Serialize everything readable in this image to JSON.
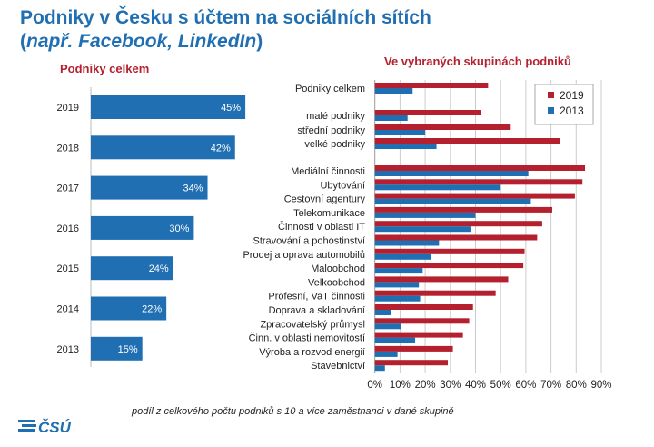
{
  "header": {
    "title_line1": "Podniky v Česku s účtem na sociálních sítích",
    "title_line2_prefix": "(",
    "title_line2_italic": "např. Facebook, LinkedIn",
    "title_line2_suffix": ")"
  },
  "footnote": "podíl z celkového počtu podniků s 10 a více zaměstnanci v dané skupině",
  "logo": "ČSÚ",
  "chart_data": [
    {
      "type": "bar",
      "orientation": "horizontal",
      "title": "Podniky celkem",
      "categories": [
        "2019",
        "2018",
        "2017",
        "2016",
        "2015",
        "2014",
        "2013"
      ],
      "values": [
        45,
        42,
        34,
        30,
        24,
        22,
        15
      ],
      "data_labels": [
        "45%",
        "42%",
        "34%",
        "30%",
        "24%",
        "22%",
        "15%"
      ],
      "color": "#1f6fb2"
    },
    {
      "type": "bar",
      "orientation": "horizontal",
      "title": "Ve vybraných skupinách podniků",
      "categories": [
        "Podniky celkem",
        "malé podniky",
        "střední podniky",
        "velké podniky",
        "Mediální činnosti",
        "Ubytování",
        "Cestovní agentury",
        "Telekomunikace",
        "Činnosti v oblasti IT",
        "Stravování a pohostinství",
        "Prodej a oprava automobilů",
        "Maloobchod",
        "Velkoobchod",
        "Profesní, VaT činnosti",
        "Doprava a skladování",
        "Zpracovatelský průmysl",
        "Činn. v oblasti nemovitostí",
        "Výroba a rozvod energií",
        "Stavebnictví"
      ],
      "series": [
        {
          "name": "2019",
          "color": "#b5202e",
          "values": [
            45,
            42,
            54,
            73.5,
            83.5,
            82.5,
            79.5,
            70.5,
            66.5,
            64.5,
            59.5,
            59,
            53,
            48,
            39,
            37.5,
            35,
            31,
            29
          ]
        },
        {
          "name": "2013",
          "color": "#1f6fb2",
          "values": [
            15,
            13,
            20,
            24.5,
            61,
            50,
            62,
            40,
            38,
            25.5,
            22.5,
            19,
            17.5,
            18,
            6.5,
            10.5,
            16,
            9,
            4
          ]
        }
      ],
      "xlim": [
        0,
        90
      ],
      "xticks": [
        "0%",
        "10%",
        "20%",
        "30%",
        "40%",
        "50%",
        "60%",
        "70%",
        "80%",
        "90%"
      ],
      "grid": true,
      "legend": "top-right"
    }
  ]
}
